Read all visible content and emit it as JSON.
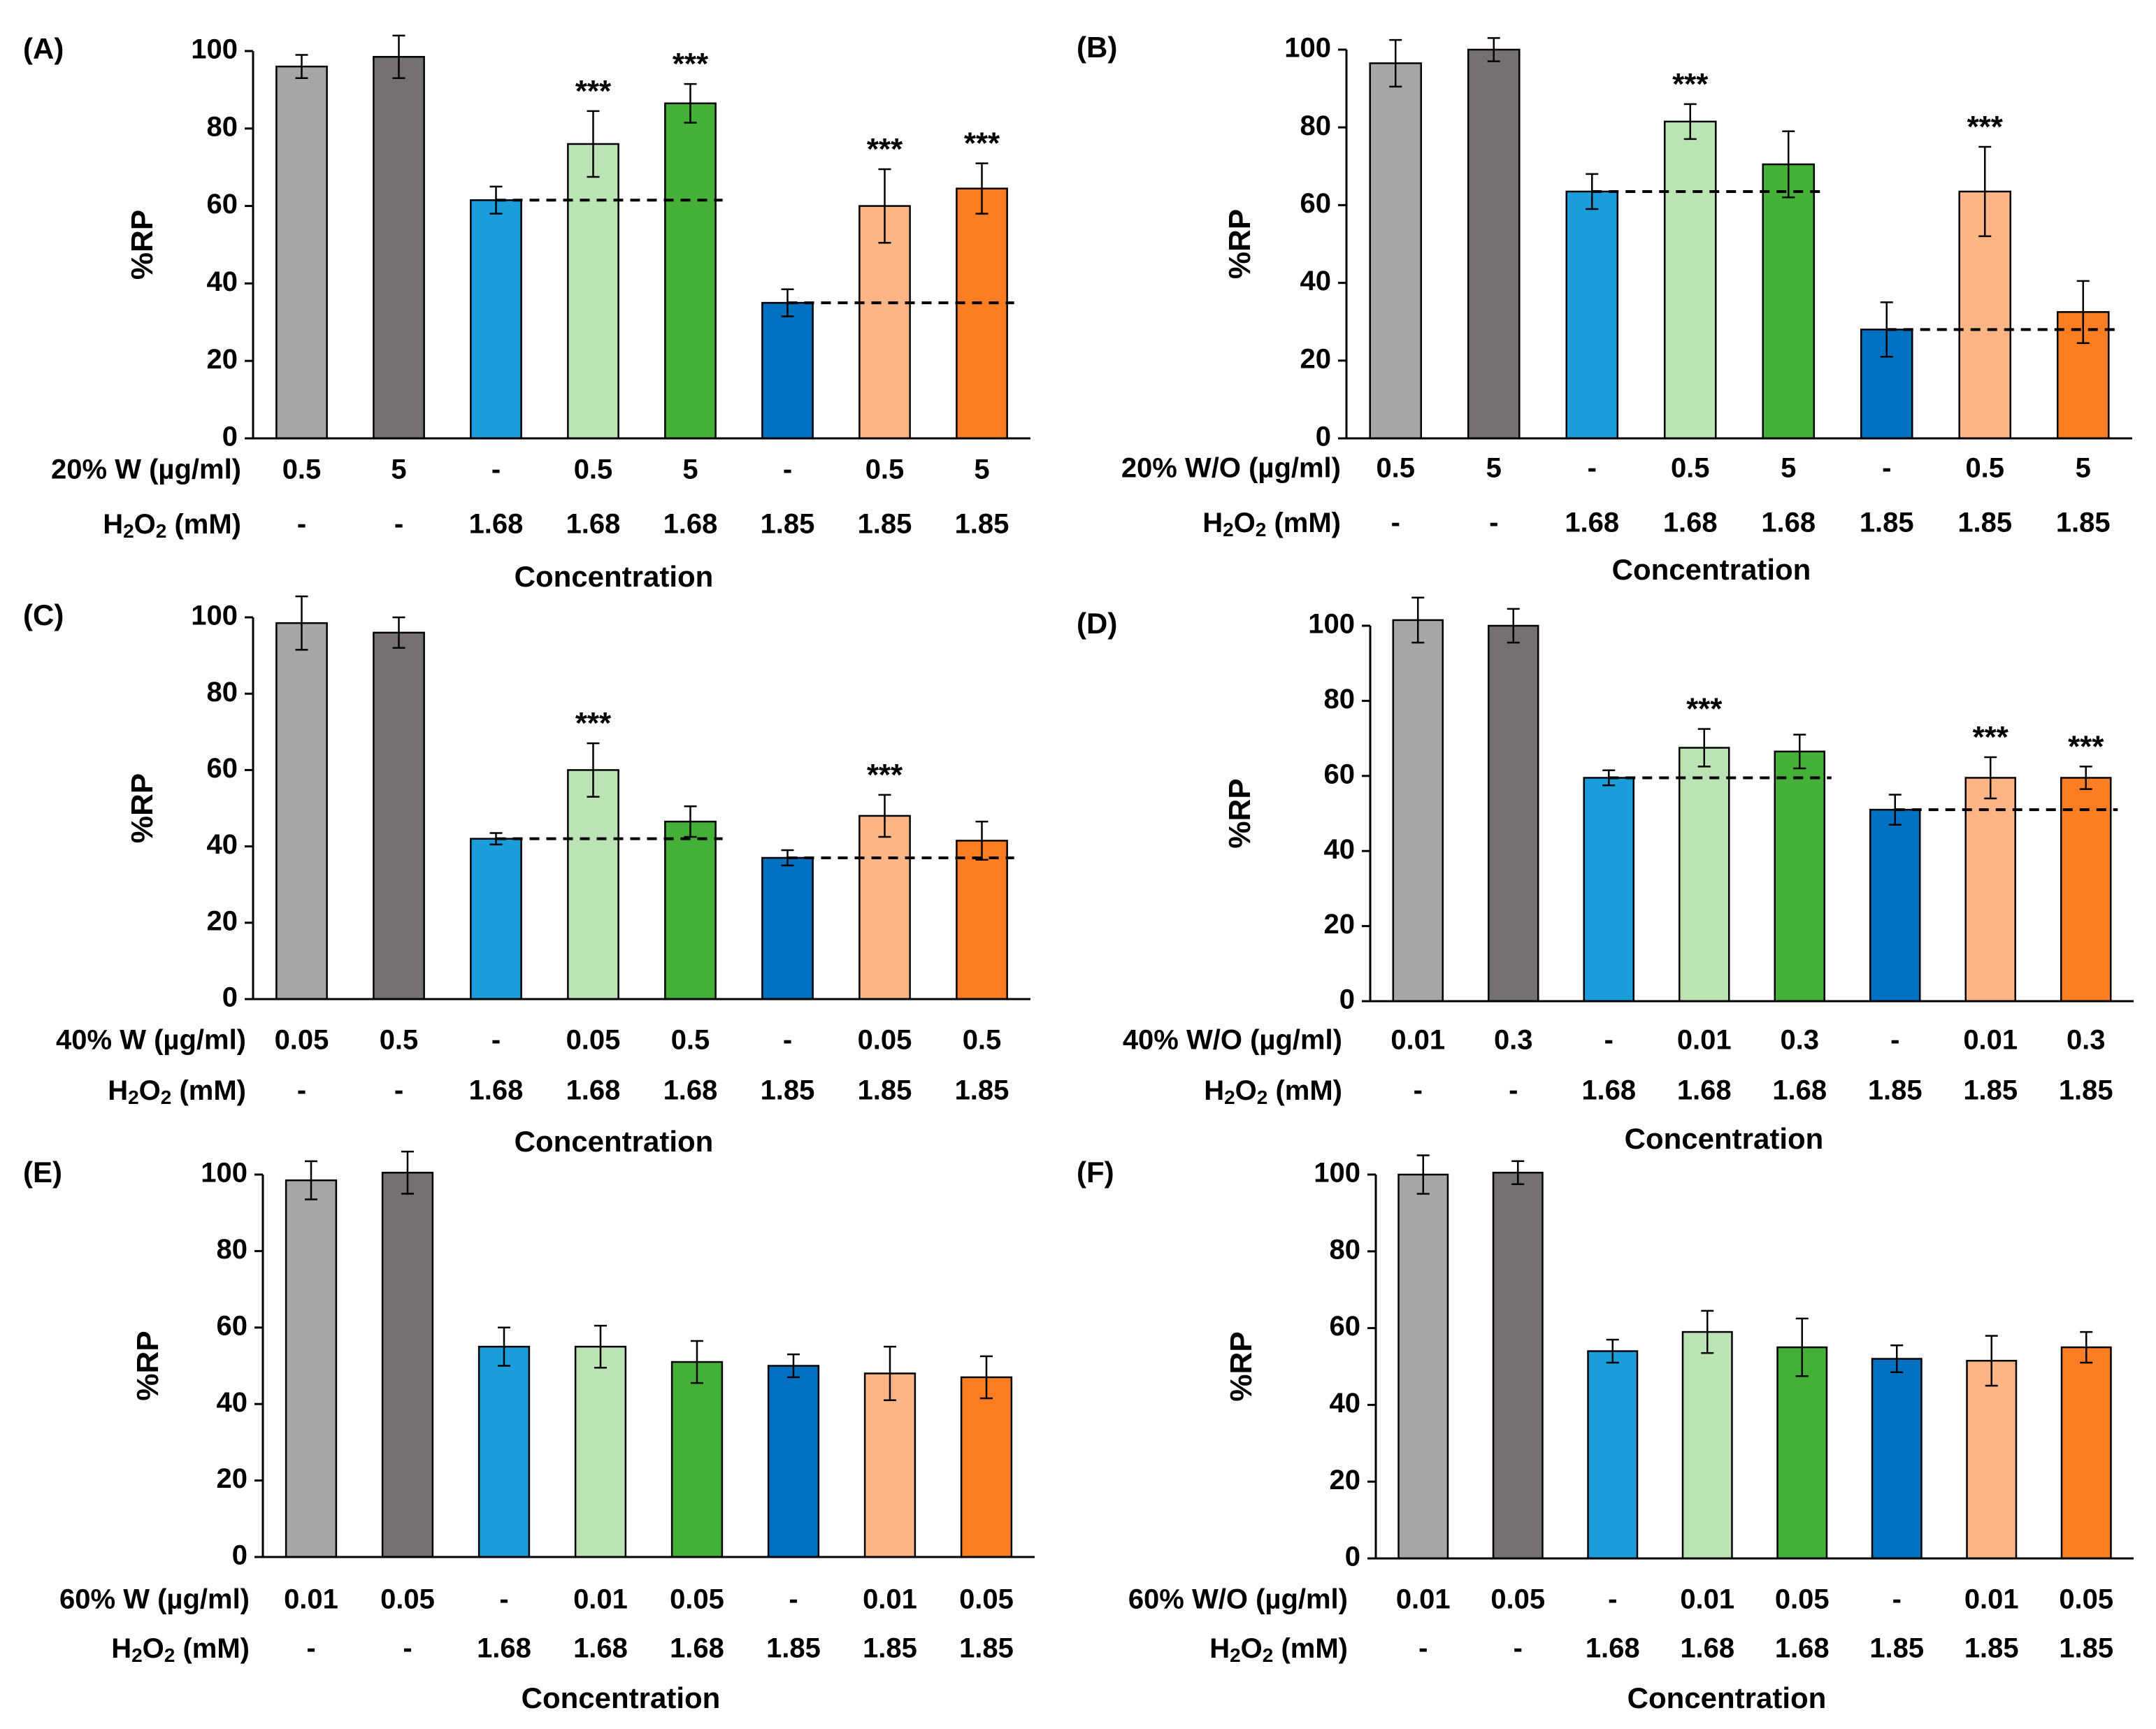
{
  "y_axis_label": "%RP",
  "x_axis_label": "Concentration",
  "h2o2_label": "H2O2 (mM)",
  "h2o2_values": [
    "-",
    "-",
    "1.68",
    "1.68",
    "1.68",
    "1.85",
    "1.85",
    "1.85"
  ],
  "bar_colors": [
    "#a6a6a6",
    "#767171",
    "#1b9ddb",
    "#bce3b4",
    "#45b038",
    "#0070c0",
    "#feb585",
    "#fd7e22"
  ],
  "significance_marker": "***",
  "chart_data": [
    {
      "type": "bar",
      "panel": "(A)",
      "ylim": [
        0,
        100
      ],
      "yticks": [
        0,
        20,
        40,
        60,
        80,
        100
      ],
      "treatment_label": "20% W (µg/ml)",
      "categories": [
        "0.5",
        "5",
        "-",
        "0.5",
        "5",
        "-",
        "0.5",
        "5"
      ],
      "values": [
        96,
        98.5,
        61.5,
        76,
        86.5,
        35,
        60,
        64.5
      ],
      "errors": [
        3,
        5.5,
        3.5,
        8.5,
        5,
        3.5,
        9.5,
        6.5
      ],
      "significant": [
        false,
        false,
        false,
        true,
        true,
        false,
        true,
        true
      ],
      "baselines": [
        {
          "from": 2,
          "to": 4,
          "value": 61.5
        },
        {
          "from": 5,
          "to": 7,
          "value": 35
        }
      ]
    },
    {
      "type": "bar",
      "panel": "(B)",
      "ylim": [
        0,
        100
      ],
      "yticks": [
        0,
        20,
        40,
        60,
        80,
        100
      ],
      "treatment_label": "20% W/O (µg/ml)",
      "categories": [
        "0.5",
        "5",
        "-",
        "0.5",
        "5",
        "-",
        "0.5",
        "5"
      ],
      "values": [
        96.5,
        100,
        63.5,
        81.5,
        70.5,
        28,
        63.5,
        32.5
      ],
      "errors": [
        6,
        3,
        4.5,
        4.5,
        8.5,
        7,
        11.5,
        8
      ],
      "significant": [
        false,
        false,
        false,
        true,
        false,
        false,
        true,
        false
      ],
      "baselines": [
        {
          "from": 2,
          "to": 4,
          "value": 63.5
        },
        {
          "from": 5,
          "to": 7,
          "value": 28
        }
      ]
    },
    {
      "type": "bar",
      "panel": "(C)",
      "ylim": [
        0,
        100
      ],
      "yticks": [
        0,
        20,
        40,
        60,
        80,
        100
      ],
      "treatment_label": "40% W (µg/ml)",
      "categories": [
        "0.05",
        "0.5",
        "-",
        "0.05",
        "0.5",
        "-",
        "0.05",
        "0.5"
      ],
      "values": [
        98.5,
        96,
        42,
        60,
        46.5,
        37,
        48,
        41.5
      ],
      "errors": [
        7,
        4,
        1.5,
        7,
        4,
        2,
        5.5,
        5
      ],
      "significant": [
        false,
        false,
        false,
        true,
        false,
        false,
        true,
        false
      ],
      "baselines": [
        {
          "from": 2,
          "to": 4,
          "value": 42
        },
        {
          "from": 5,
          "to": 7,
          "value": 37
        }
      ]
    },
    {
      "type": "bar",
      "panel": "(D)",
      "ylim": [
        0,
        100
      ],
      "yticks": [
        0,
        20,
        40,
        60,
        80,
        100
      ],
      "treatment_label": "40% W/O (µg/ml)",
      "categories": [
        "0.01",
        "0.3",
        "-",
        "0.01",
        "0.3",
        "-",
        "0.01",
        "0.3"
      ],
      "values": [
        101.5,
        100,
        59.5,
        67.5,
        66.5,
        51,
        59.5,
        59.5
      ],
      "errors": [
        6,
        4.5,
        2,
        5,
        4.5,
        4,
        5.5,
        3
      ],
      "significant": [
        false,
        false,
        false,
        true,
        false,
        false,
        true,
        true
      ],
      "baselines": [
        {
          "from": 2,
          "to": 4,
          "value": 59.5
        },
        {
          "from": 5,
          "to": 7,
          "value": 51
        }
      ]
    },
    {
      "type": "bar",
      "panel": "(E)",
      "ylim": [
        0,
        100
      ],
      "yticks": [
        0,
        20,
        40,
        60,
        80,
        100
      ],
      "treatment_label": "60% W (µg/ml)",
      "categories": [
        "0.01",
        "0.05",
        "-",
        "0.01",
        "0.05",
        "-",
        "0.01",
        "0.05"
      ],
      "values": [
        98.5,
        100.5,
        55,
        55,
        51,
        50,
        48,
        47
      ],
      "errors": [
        5,
        5.5,
        5,
        5.5,
        5.5,
        3,
        7,
        5.5
      ],
      "significant": [
        false,
        false,
        false,
        false,
        false,
        false,
        false,
        false
      ],
      "baselines": []
    },
    {
      "type": "bar",
      "panel": "(F)",
      "ylim": [
        0,
        100
      ],
      "yticks": [
        0,
        20,
        40,
        60,
        80,
        100
      ],
      "treatment_label": "60% W/O (µg/ml)",
      "categories": [
        "0.01",
        "0.05",
        "-",
        "0.01",
        "0.05",
        "-",
        "0.01",
        "0.05"
      ],
      "values": [
        100,
        100.5,
        54,
        59,
        55,
        52,
        51.5,
        55
      ],
      "errors": [
        5,
        3,
        3,
        5.5,
        7.5,
        3.5,
        6.5,
        4
      ],
      "significant": [
        false,
        false,
        false,
        false,
        false,
        false,
        false,
        false
      ],
      "baselines": []
    }
  ]
}
